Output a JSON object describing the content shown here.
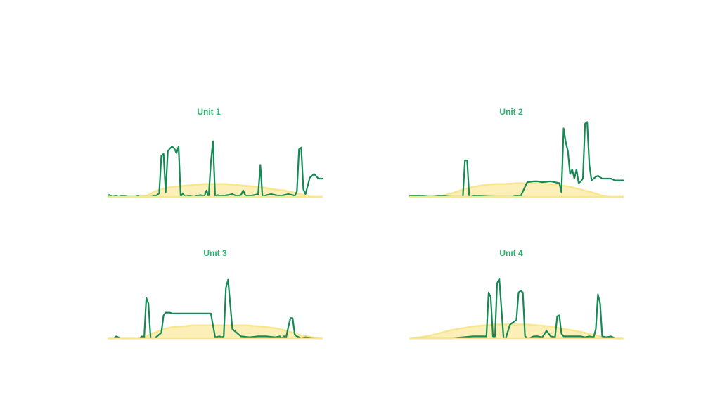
{
  "theme": {
    "title_color": "#2db36f",
    "line_color": "#168a55",
    "area_color": "#f8e78e",
    "area_fill": "#fbeaa0",
    "background": "#ffffff"
  },
  "chart_data": [
    {
      "type": "area",
      "title": "Unit 1",
      "ylim": [
        0,
        100
      ],
      "grid": false,
      "series": [
        {
          "role": "line",
          "x": [
            0,
            1,
            2,
            4,
            5,
            7,
            10,
            13,
            14,
            15,
            16,
            20,
            22,
            23,
            24,
            25,
            26,
            27,
            28,
            29,
            30,
            31,
            32,
            33,
            34,
            35,
            36,
            38,
            40,
            43,
            45,
            46,
            47,
            48,
            49,
            50,
            51,
            53,
            56,
            58,
            60,
            62,
            63,
            64,
            65,
            66,
            68,
            70,
            71,
            72,
            74,
            76,
            80,
            82,
            84,
            86,
            87,
            88,
            89,
            90,
            91,
            92,
            94,
            96,
            98,
            100
          ],
          "y": [
            2,
            2,
            0,
            1,
            0,
            1,
            0,
            0,
            1,
            0,
            0,
            0,
            1,
            2,
            4,
            45,
            47,
            5,
            50,
            53,
            55,
            53,
            48,
            55,
            0,
            4,
            0,
            1,
            0,
            2,
            1,
            7,
            0,
            38,
            61,
            0,
            2,
            1,
            2,
            3,
            1,
            2,
            7,
            2,
            1,
            1,
            2,
            3,
            35,
            0,
            2,
            3,
            1,
            2,
            3,
            2,
            1,
            6,
            52,
            54,
            8,
            3,
            21,
            25,
            20,
            20
          ]
        },
        {
          "role": "area",
          "x": [
            0,
            10,
            14,
            18,
            22,
            26,
            30,
            35,
            40,
            45,
            50,
            55,
            60,
            65,
            70,
            73,
            75,
            78,
            82,
            86,
            90,
            92,
            95,
            100
          ],
          "y": [
            0,
            0,
            0,
            1,
            6,
            9,
            11,
            12,
            13,
            14,
            14,
            14,
            13,
            12,
            11,
            10,
            9,
            8,
            7,
            5,
            3,
            1,
            0,
            0
          ]
        }
      ]
    },
    {
      "type": "area",
      "title": "Unit 2",
      "ylim": [
        0,
        100
      ],
      "grid": false,
      "series": [
        {
          "role": "line",
          "x": [
            0,
            5,
            10,
            15,
            20,
            25,
            26,
            27,
            28,
            29,
            30,
            40,
            48,
            50,
            52,
            55,
            58,
            60,
            62,
            66,
            70,
            71,
            72,
            73,
            74,
            75,
            76,
            77,
            78,
            79,
            80,
            81,
            82,
            83,
            84,
            85,
            86,
            87,
            88,
            90,
            94,
            96,
            100
          ],
          "y": [
            1,
            1,
            0,
            1,
            0,
            0,
            40,
            40,
            0,
            0,
            1,
            0,
            0,
            1,
            1,
            16,
            17,
            17,
            16,
            17,
            15,
            5,
            75,
            60,
            50,
            25,
            30,
            20,
            30,
            15,
            17,
            20,
            80,
            82,
            35,
            18,
            20,
            22,
            23,
            20,
            20,
            18,
            18
          ]
        },
        {
          "role": "area",
          "x": [
            0,
            10,
            15,
            20,
            25,
            30,
            35,
            40,
            45,
            50,
            55,
            60,
            65,
            70,
            75,
            80,
            85,
            88,
            90,
            94,
            100
          ],
          "y": [
            0,
            0,
            1,
            4,
            8,
            11,
            13,
            14,
            14,
            15,
            15,
            15,
            14,
            13,
            11,
            8,
            5,
            3,
            1,
            0,
            0
          ]
        }
      ]
    },
    {
      "type": "area",
      "title": "Unit 3",
      "ylim": [
        0,
        100
      ],
      "grid": false,
      "series": [
        {
          "role": "line",
          "x": [
            0,
            3,
            4,
            6,
            10,
            15,
            16,
            17,
            18,
            19,
            20,
            22,
            25,
            26,
            27,
            29,
            30,
            34,
            38,
            40,
            42,
            45,
            48,
            50,
            52,
            53,
            54,
            55,
            56,
            58,
            62,
            66,
            70,
            74,
            78,
            80,
            81,
            82,
            83,
            84,
            85,
            86,
            87,
            88,
            89,
            90,
            92,
            96,
            100
          ],
          "y": [
            0,
            0,
            2,
            0,
            0,
            0,
            2,
            0,
            44,
            38,
            0,
            0,
            6,
            25,
            28,
            28,
            27,
            27,
            27,
            27,
            27,
            27,
            27,
            1,
            2,
            1,
            2,
            55,
            64,
            10,
            2,
            1,
            2,
            2,
            1,
            2,
            0,
            2,
            1,
            12,
            22,
            22,
            4,
            2,
            1,
            0,
            1,
            0,
            0
          ]
        },
        {
          "role": "area",
          "x": [
            0,
            10,
            15,
            18,
            22,
            26,
            30,
            35,
            40,
            45,
            50,
            55,
            60,
            65,
            70,
            74,
            78,
            82,
            86,
            90,
            95,
            100
          ],
          "y": [
            0,
            0,
            0,
            2,
            6,
            10,
            12,
            13,
            14,
            14,
            14,
            14,
            14,
            14,
            13,
            12,
            11,
            9,
            6,
            3,
            1,
            0
          ]
        }
      ]
    },
    {
      "type": "area",
      "title": "Unit 4",
      "ylim": [
        0,
        100
      ],
      "grid": false,
      "series": [
        {
          "role": "line",
          "x": [
            0,
            10,
            20,
            30,
            36,
            37,
            38,
            39,
            40,
            41,
            42,
            44,
            45,
            47,
            50,
            51,
            52,
            53,
            54,
            55,
            56,
            58,
            60,
            62,
            64,
            66,
            68,
            69,
            70,
            71,
            72,
            74,
            77,
            80,
            82,
            84,
            86,
            87,
            88,
            89,
            90,
            92,
            94,
            96,
            100
          ],
          "y": [
            0,
            0,
            0,
            2,
            2,
            50,
            45,
            2,
            2,
            60,
            65,
            0,
            0,
            15,
            20,
            50,
            52,
            50,
            2,
            0,
            0,
            2,
            2,
            1,
            8,
            2,
            1,
            24,
            25,
            5,
            2,
            2,
            2,
            2,
            1,
            2,
            1,
            10,
            48,
            38,
            2,
            1,
            2,
            0,
            0
          ]
        },
        {
          "role": "area",
          "x": [
            0,
            5,
            10,
            15,
            20,
            25,
            30,
            35,
            40,
            45,
            50,
            55,
            60,
            65,
            70,
            75,
            80,
            85,
            90,
            95,
            100
          ],
          "y": [
            0,
            1,
            3,
            6,
            9,
            11,
            13,
            14,
            15,
            15,
            15,
            15,
            14,
            13,
            11,
            9,
            7,
            4,
            1,
            0,
            0
          ]
        }
      ]
    }
  ]
}
